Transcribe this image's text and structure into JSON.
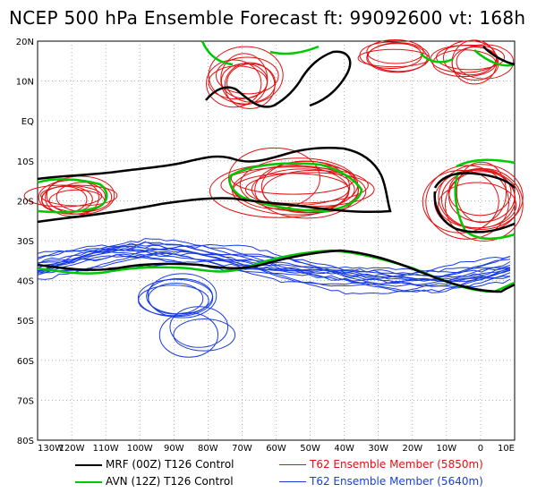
{
  "title": "NCEP 500 hPa Ensemble Forecast  ft: 99092600 vt: 168h",
  "lat_labels": [
    "20N",
    "10N",
    "EQ",
    "10S",
    "20S",
    "30S",
    "40S",
    "50S",
    "60S",
    "70S",
    "80S"
  ],
  "lon_labels": [
    "130W",
    "120W",
    "110W",
    "100W",
    "90W",
    "80W",
    "70W",
    "60W",
    "50W",
    "40W",
    "30W",
    "20W",
    "10W",
    "0",
    "10E"
  ],
  "legend": [
    {
      "label": "MRF (00Z) T126 Control",
      "color": "#000000",
      "thick": true
    },
    {
      "label": "AVN (12Z) T126 Control",
      "color": "#00c800",
      "thick": true
    },
    {
      "label": "T62 Ensemble Member (5850m)",
      "color": "#e01010",
      "thick": false
    },
    {
      "label": "T62 Ensemble Member (5640m)",
      "color": "#1a3de0",
      "thick": false
    }
  ],
  "colors": {
    "mrf": "#000000",
    "avn": "#00c800",
    "member_5850": "#e01010",
    "member_5640": "#1a3de0",
    "grid": "#808080",
    "coast": "#000000"
  }
}
